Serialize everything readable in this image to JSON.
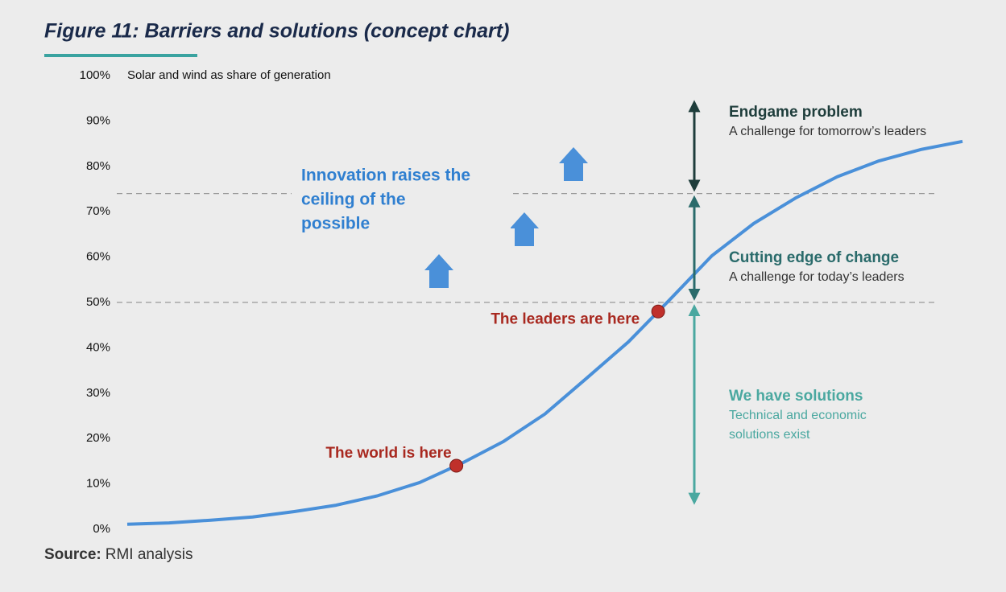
{
  "chart_data": {
    "type": "line",
    "title": "Figure 11: Barriers and solutions (concept chart)",
    "y_axis_title": "Solar and wind as share of generation",
    "ylim": [
      0,
      100
    ],
    "yticks": [
      {
        "value": 0,
        "label": "0%"
      },
      {
        "value": 10,
        "label": "10%"
      },
      {
        "value": 20,
        "label": "20%"
      },
      {
        "value": 30,
        "label": "30%"
      },
      {
        "value": 40,
        "label": "40%"
      },
      {
        "value": 50,
        "label": "50%"
      },
      {
        "value": 60,
        "label": "60%"
      },
      {
        "value": 70,
        "label": "70%"
      },
      {
        "value": 80,
        "label": "80%"
      },
      {
        "value": 90,
        "label": "90%"
      },
      {
        "value": 100,
        "label": "100%"
      }
    ],
    "categories": [
      null,
      null,
      null,
      null,
      null,
      null,
      null,
      null,
      null,
      null,
      null,
      null,
      null,
      null,
      null,
      null,
      null,
      null,
      null,
      null,
      null
    ],
    "values": [
      1.1,
      1.4,
      2,
      2.7,
      3.9,
      5.3,
      7.4,
      10.3,
      14.5,
      19.3,
      25.4,
      33.3,
      41.3,
      50.7,
      60.3,
      67.4,
      73,
      77.7,
      81.2,
      83.7,
      85.5
    ],
    "color": "#4a90d9",
    "reference_lines": [
      50,
      74
    ],
    "points": [
      {
        "label": "The world is here",
        "value": 14
      },
      {
        "label": "The leaders are here",
        "value": 48
      }
    ],
    "point_color": "#c0302b",
    "annotation": [
      "Innovation raises the",
      "ceiling of the",
      "possible"
    ],
    "regions": [
      {
        "title": "Endgame problem",
        "subtitle": "A challenge for tomorrow’s leaders",
        "from": 75,
        "to": 94,
        "color": "#1e3d3b",
        "subtitle_color": "#333333"
      },
      {
        "title": "Cutting edge of change",
        "subtitle": "A challenge for today’s leaders",
        "from": 51,
        "to": 73,
        "color": "#2a6b6b",
        "subtitle_color": "#333333"
      },
      {
        "title": "We have solutions",
        "subtitle": [
          "Technical and economic",
          "solutions exist"
        ],
        "from": 6,
        "to": 49,
        "color": "#4aa8a0",
        "subtitle_color": "#4aa8a0"
      }
    ],
    "source_label": "Source:",
    "source_text": "RMI analysis"
  }
}
